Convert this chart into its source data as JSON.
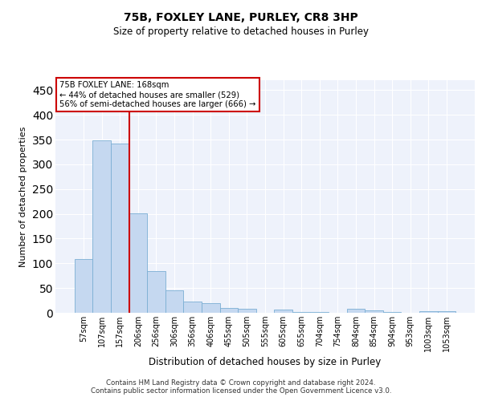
{
  "title": "75B, FOXLEY LANE, PURLEY, CR8 3HP",
  "subtitle": "Size of property relative to detached houses in Purley",
  "xlabel": "Distribution of detached houses by size in Purley",
  "ylabel": "Number of detached properties",
  "categories": [
    "57sqm",
    "107sqm",
    "157sqm",
    "206sqm",
    "256sqm",
    "306sqm",
    "356sqm",
    "406sqm",
    "455sqm",
    "505sqm",
    "555sqm",
    "605sqm",
    "655sqm",
    "704sqm",
    "754sqm",
    "804sqm",
    "854sqm",
    "904sqm",
    "953sqm",
    "1003sqm",
    "1053sqm"
  ],
  "values": [
    109,
    349,
    342,
    201,
    84,
    46,
    22,
    20,
    10,
    8,
    0,
    7,
    1,
    1,
    0,
    8,
    5,
    1,
    0,
    3,
    3
  ],
  "bar_color": "#c5d8f0",
  "bar_edge_color": "#7bafd4",
  "vline_color": "#cc0000",
  "annotation_line1": "75B FOXLEY LANE: 168sqm",
  "annotation_line2": "← 44% of detached houses are smaller (529)",
  "annotation_line3": "56% of semi-detached houses are larger (666) →",
  "annotation_box_color": "#cc0000",
  "ylim": [
    0,
    470
  ],
  "yticks": [
    0,
    50,
    100,
    150,
    200,
    250,
    300,
    350,
    400,
    450
  ],
  "background_color": "#eef2fb",
  "footer_line1": "Contains HM Land Registry data © Crown copyright and database right 2024.",
  "footer_line2": "Contains public sector information licensed under the Open Government Licence v3.0."
}
